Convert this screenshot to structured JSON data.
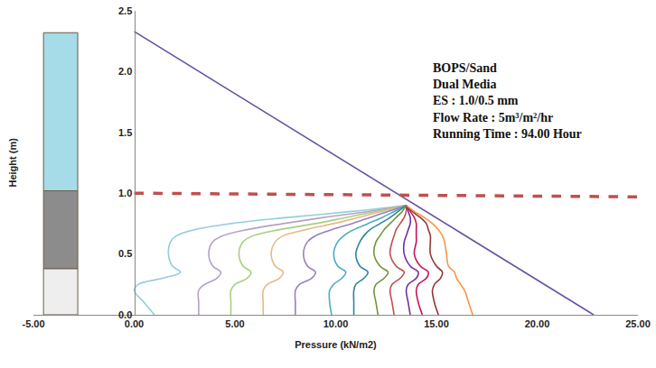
{
  "chart_data": {
    "type": "line",
    "x_label": "Pressure (kN/m2)",
    "y_label": "Height (m)",
    "annotations": [
      "BOPS/Sand",
      "Dual Media",
      "ES : 1.0/0.5 mm",
      "Flow Rate : 5m³/m²/hr",
      "Running Time : 94.00 Hour"
    ],
    "xlim": [
      -5,
      25
    ],
    "ylim": [
      0,
      2.5
    ],
    "xticks": [
      {
        "value": -5,
        "label": "-5.00"
      },
      {
        "value": 0,
        "label": "0.00"
      },
      {
        "value": 5,
        "label": "5.00"
      },
      {
        "value": 10,
        "label": "10.00"
      },
      {
        "value": 15,
        "label": "15.00"
      },
      {
        "value": 20,
        "label": "20.00"
      },
      {
        "value": 25,
        "label": "25.00"
      }
    ],
    "yticks": [
      {
        "value": 0,
        "label": "0.0"
      },
      0.5,
      {
        "value": 1,
        "label": "1.0"
      },
      1.5,
      {
        "value": 2,
        "label": "2.0"
      },
      2.5
    ],
    "grid": false,
    "media_column": {
      "x": [
        -4.5,
        -2.8
      ],
      "layers": [
        {
          "from": 0,
          "to": 0.38,
          "color": "#eeeeee"
        },
        {
          "from": 0.38,
          "to": 1.02,
          "color": "#8c8c8c"
        },
        {
          "from": 1.02,
          "to": 2.32,
          "color": "#a6dbe8"
        }
      ]
    },
    "series": [
      {
        "color": "#6650a0",
        "line_style": "solid",
        "x": [
          0,
          22.8
        ],
        "y": [
          2.33,
          0
        ]
      },
      {
        "color": "#c0504d",
        "line_style": "dashed",
        "x": [
          0,
          25
        ],
        "y": [
          1.0,
          0.97
        ]
      },
      {
        "color": "#93cddd",
        "line_style": "solid",
        "x": [
          13.5,
          10.8,
          7.6,
          4.8,
          3.0,
          2.1,
          1.8,
          1.7,
          1.9,
          2.3,
          1.4,
          0.2,
          0.0,
          0.5,
          1.0
        ],
        "y": [
          0.9,
          0.85,
          0.8,
          0.75,
          0.7,
          0.65,
          0.6,
          0.5,
          0.4,
          0.35,
          0.3,
          0.25,
          0.2,
          0.1,
          0.0
        ]
      },
      {
        "color": "#b3a2c7",
        "line_style": "solid",
        "x": [
          13.5,
          11.6,
          9.4,
          7.4,
          5.6,
          4.4,
          3.9,
          3.7,
          3.9,
          4.3,
          4.1,
          3.5,
          3.2,
          3.2,
          3.2
        ],
        "y": [
          0.9,
          0.85,
          0.8,
          0.75,
          0.7,
          0.65,
          0.6,
          0.5,
          0.4,
          0.35,
          0.3,
          0.25,
          0.2,
          0.1,
          0.0
        ]
      },
      {
        "color": "#a9cf7e",
        "line_style": "solid",
        "x": [
          13.5,
          12.0,
          10.5,
          9.0,
          7.2,
          5.9,
          5.4,
          5.2,
          5.4,
          5.8,
          5.6,
          5.0,
          4.8,
          4.8,
          4.8
        ],
        "y": [
          0.9,
          0.85,
          0.8,
          0.75,
          0.7,
          0.65,
          0.6,
          0.5,
          0.4,
          0.35,
          0.3,
          0.25,
          0.2,
          0.1,
          0.0
        ]
      },
      {
        "color": "#e6b98a",
        "line_style": "solid",
        "x": [
          13.5,
          12.3,
          11.1,
          9.9,
          8.5,
          7.4,
          7.0,
          6.8,
          7.0,
          7.4,
          7.2,
          6.6,
          6.4,
          6.4,
          6.4
        ],
        "y": [
          0.9,
          0.85,
          0.8,
          0.75,
          0.7,
          0.65,
          0.6,
          0.5,
          0.4,
          0.35,
          0.3,
          0.25,
          0.2,
          0.1,
          0.0
        ]
      },
      {
        "color": "#9a7fc0",
        "line_style": "solid",
        "x": [
          13.5,
          12.6,
          11.7,
          10.8,
          9.8,
          9.0,
          8.6,
          8.4,
          8.6,
          9.0,
          8.8,
          8.2,
          8.0,
          8.0,
          8.0
        ],
        "y": [
          0.9,
          0.85,
          0.8,
          0.75,
          0.7,
          0.65,
          0.6,
          0.5,
          0.4,
          0.35,
          0.3,
          0.25,
          0.2,
          0.1,
          0.0
        ]
      },
      {
        "color": "#4bacc6",
        "line_style": "solid",
        "x": [
          13.5,
          12.9,
          12.3,
          11.6,
          10.9,
          10.4,
          10.1,
          9.9,
          10.1,
          10.5,
          10.3,
          9.9,
          9.7,
          9.7,
          9.8
        ],
        "y": [
          0.9,
          0.85,
          0.8,
          0.75,
          0.7,
          0.65,
          0.6,
          0.5,
          0.4,
          0.35,
          0.3,
          0.25,
          0.2,
          0.1,
          0.0
        ]
      },
      {
        "color": "#31859c",
        "line_style": "solid",
        "x": [
          13.5,
          13.1,
          12.7,
          12.2,
          11.7,
          11.4,
          11.2,
          11.0,
          11.2,
          11.6,
          11.4,
          11.0,
          10.9,
          10.9,
          10.9
        ],
        "y": [
          0.9,
          0.85,
          0.8,
          0.75,
          0.7,
          0.65,
          0.6,
          0.5,
          0.4,
          0.35,
          0.3,
          0.25,
          0.2,
          0.1,
          0.0
        ]
      },
      {
        "color": "#77933c",
        "line_style": "solid",
        "x": [
          13.5,
          13.3,
          13.0,
          12.7,
          12.4,
          12.2,
          12.0,
          11.9,
          12.2,
          12.6,
          12.4,
          12.0,
          11.9,
          12.0,
          12.1
        ],
        "y": [
          0.9,
          0.85,
          0.8,
          0.75,
          0.7,
          0.65,
          0.6,
          0.5,
          0.4,
          0.35,
          0.3,
          0.25,
          0.2,
          0.1,
          0.0
        ]
      },
      {
        "color": "#c0504d",
        "line_style": "solid",
        "x": [
          13.5,
          13.5,
          13.4,
          13.2,
          13.0,
          12.9,
          12.8,
          12.7,
          13.0,
          13.4,
          13.2,
          12.8,
          12.7,
          12.8,
          12.9
        ],
        "y": [
          0.9,
          0.85,
          0.8,
          0.75,
          0.7,
          0.65,
          0.6,
          0.5,
          0.4,
          0.35,
          0.3,
          0.25,
          0.2,
          0.1,
          0.0
        ]
      },
      {
        "color": "#7030a0",
        "line_style": "solid",
        "x": [
          13.5,
          13.6,
          13.7,
          13.7,
          13.6,
          13.5,
          13.4,
          13.4,
          13.7,
          14.1,
          14.0,
          13.6,
          13.5,
          13.6,
          13.7
        ],
        "y": [
          0.9,
          0.85,
          0.8,
          0.75,
          0.7,
          0.65,
          0.6,
          0.5,
          0.4,
          0.35,
          0.3,
          0.25,
          0.2,
          0.1,
          0.0
        ]
      },
      {
        "color": "#c0185a",
        "line_style": "solid",
        "x": [
          13.5,
          13.7,
          13.9,
          14.0,
          14.0,
          14.0,
          14.0,
          13.9,
          14.2,
          14.6,
          14.5,
          14.1,
          14.0,
          14.1,
          14.3
        ],
        "y": [
          0.9,
          0.85,
          0.8,
          0.75,
          0.7,
          0.65,
          0.6,
          0.5,
          0.4,
          0.35,
          0.3,
          0.25,
          0.2,
          0.1,
          0.0
        ]
      },
      {
        "color": "#953735",
        "line_style": "solid",
        "x": [
          13.5,
          13.8,
          14.2,
          14.5,
          14.6,
          14.7,
          14.7,
          14.7,
          15.0,
          15.3,
          15.2,
          14.9,
          14.8,
          14.9,
          15.1
        ],
        "y": [
          0.9,
          0.85,
          0.8,
          0.75,
          0.7,
          0.65,
          0.6,
          0.5,
          0.4,
          0.35,
          0.3,
          0.25,
          0.2,
          0.1,
          0.0
        ]
      },
      {
        "color": "#f79646",
        "line_style": "solid",
        "x": [
          13.5,
          13.9,
          14.4,
          14.8,
          15.1,
          15.3,
          15.4,
          15.5,
          15.6,
          15.9,
          16.0,
          16.2,
          16.4,
          16.6,
          16.8
        ],
        "y": [
          0.9,
          0.85,
          0.8,
          0.75,
          0.7,
          0.65,
          0.6,
          0.5,
          0.4,
          0.35,
          0.3,
          0.25,
          0.2,
          0.1,
          0.0
        ]
      }
    ]
  }
}
